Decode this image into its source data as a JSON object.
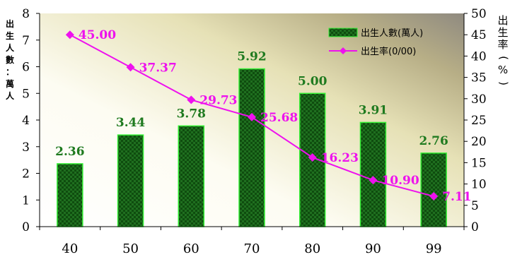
{
  "chart_data": {
    "type": "bar-line",
    "categories": [
      "40",
      "50",
      "60",
      "70",
      "80",
      "90",
      "99"
    ],
    "series": [
      {
        "name": "出生人數(萬人)",
        "type": "bar",
        "axis": "left",
        "values": [
          2.36,
          3.44,
          3.78,
          5.92,
          5.0,
          3.91,
          2.76
        ],
        "labels": [
          "2.36",
          "3.44",
          "3.78",
          "5.92",
          "5.00",
          "3.91",
          "2.76"
        ],
        "color": "#0f4d0f",
        "border_color": "#33ee33"
      },
      {
        "name": "出生率(0/00)",
        "type": "line",
        "axis": "right",
        "values": [
          45.0,
          37.37,
          29.73,
          25.68,
          16.23,
          10.9,
          7.11
        ],
        "labels": [
          "45.00",
          "37.37",
          "29.73",
          "25.68",
          "16.23",
          "10.90",
          "7.11"
        ],
        "color": "#ee11ee"
      }
    ],
    "left_axis": {
      "label": "出生人數：萬人",
      "range": [
        0,
        8
      ],
      "ticks": [
        "0",
        "1",
        "2",
        "3",
        "4",
        "5",
        "6",
        "7",
        "8"
      ]
    },
    "right_axis": {
      "label": "出生率(%)",
      "range": [
        0,
        50
      ],
      "ticks": [
        "0",
        "5",
        "10",
        "15",
        "20",
        "25",
        "30",
        "35",
        "40",
        "45",
        "50"
      ]
    },
    "legend_position": "top-right",
    "grid": false,
    "background": "gradient"
  }
}
